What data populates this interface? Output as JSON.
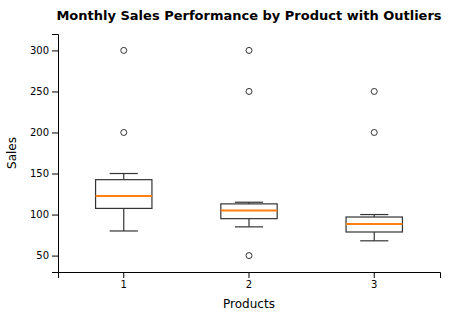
{
  "chart_data": {
    "type": "box",
    "title": "Monthly Sales Performance by Product with Outliers",
    "x_label": "Products",
    "y_label": "Sales",
    "categories": [
      "1",
      "2",
      "3"
    ],
    "boxes": [
      {
        "whisker_low": 80,
        "q1": 107.5,
        "median": 122.5,
        "q3": 142.5,
        "whisker_high": 150,
        "fliers": [
          200,
          300
        ]
      },
      {
        "whisker_low": 85,
        "q1": 95,
        "median": 105,
        "q3": 113,
        "whisker_high": 115,
        "fliers": [
          50,
          250,
          300
        ]
      },
      {
        "whisker_low": 68,
        "q1": 78.75,
        "median": 88.5,
        "q3": 97,
        "whisker_high": 100,
        "fliers": [
          200,
          250
        ]
      }
    ],
    "color": "#333333",
    "ylim": [
      30,
      320
    ],
    "yticks": [
      50,
      100,
      150,
      200,
      250,
      300
    ],
    "grid": false
  }
}
